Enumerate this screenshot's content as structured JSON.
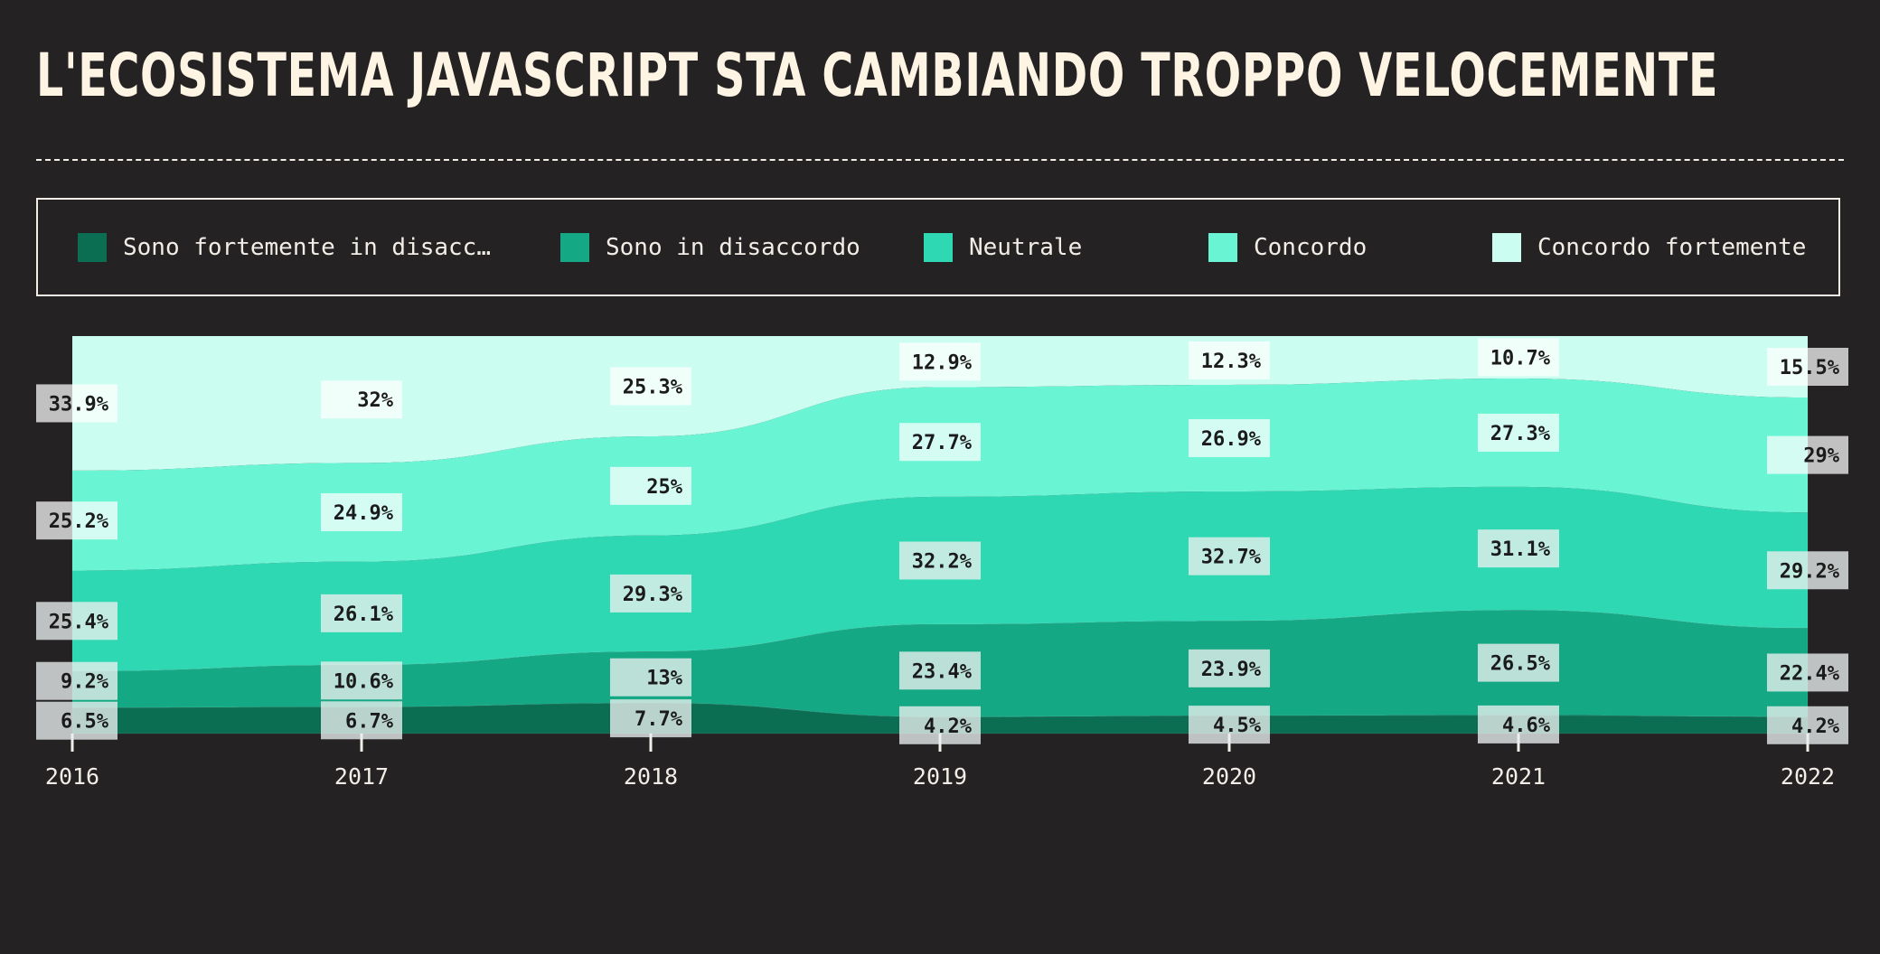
{
  "title": "L'ECOSISTEMA JAVASCRIPT STA CAMBIANDO TROPPO VELOCEMENTE",
  "legend": [
    {
      "label": "Sono fortemente in disacc…",
      "color": "#0b6e53"
    },
    {
      "label": "Sono in disaccordo",
      "color": "#14a884"
    },
    {
      "label": "Neutrale",
      "color": "#2ed8b3"
    },
    {
      "label": "Concordo",
      "color": "#69f5d4"
    },
    {
      "label": "Concordo fortemente",
      "color": "#cbfdf0"
    }
  ],
  "chart_data": {
    "type": "area",
    "stacked": true,
    "normalized": true,
    "title": "L'ECOSISTEMA JAVASCRIPT STA CAMBIANDO TROPPO VELOCEMENTE",
    "categories": [
      "2016",
      "2017",
      "2018",
      "2019",
      "2020",
      "2021",
      "2022"
    ],
    "series": [
      {
        "name": "Sono fortemente in disaccordo",
        "color": "#0b6e53",
        "values": [
          6.5,
          6.7,
          7.7,
          4.2,
          4.5,
          4.6,
          4.2
        ]
      },
      {
        "name": "Sono in disaccordo",
        "color": "#14a884",
        "values": [
          9.2,
          10.6,
          13,
          23.4,
          23.9,
          26.5,
          22.4
        ]
      },
      {
        "name": "Neutrale",
        "color": "#2ed8b3",
        "values": [
          25.4,
          26.1,
          29.3,
          32.2,
          32.7,
          31.1,
          29.2
        ]
      },
      {
        "name": "Concordo",
        "color": "#69f5d4",
        "values": [
          25.2,
          24.9,
          25,
          27.7,
          26.9,
          27.3,
          29
        ]
      },
      {
        "name": "Concordo fortemente",
        "color": "#cbfdf0",
        "values": [
          33.9,
          32,
          25.3,
          12.9,
          12.3,
          10.7,
          15.5
        ]
      }
    ],
    "data_labels": [
      [
        "6.5%",
        "6.7%",
        "7.7%",
        "4.2%",
        "4.5%",
        "4.6%",
        "4.2%"
      ],
      [
        "9.2%",
        "10.6%",
        "13%",
        "23.4%",
        "23.9%",
        "26.5%",
        "22.4%"
      ],
      [
        "25.4%",
        "26.1%",
        "29.3%",
        "32.2%",
        "32.7%",
        "31.1%",
        "29.2%"
      ],
      [
        "25.2%",
        "24.9%",
        "25%",
        "27.7%",
        "26.9%",
        "27.3%",
        "29%"
      ],
      [
        "33.9%",
        "32%",
        "25.3%",
        "12.9%",
        "12.3%",
        "10.7%",
        "15.5%"
      ]
    ],
    "ylim": [
      0,
      100
    ],
    "grid": false,
    "legend_position": "top"
  }
}
